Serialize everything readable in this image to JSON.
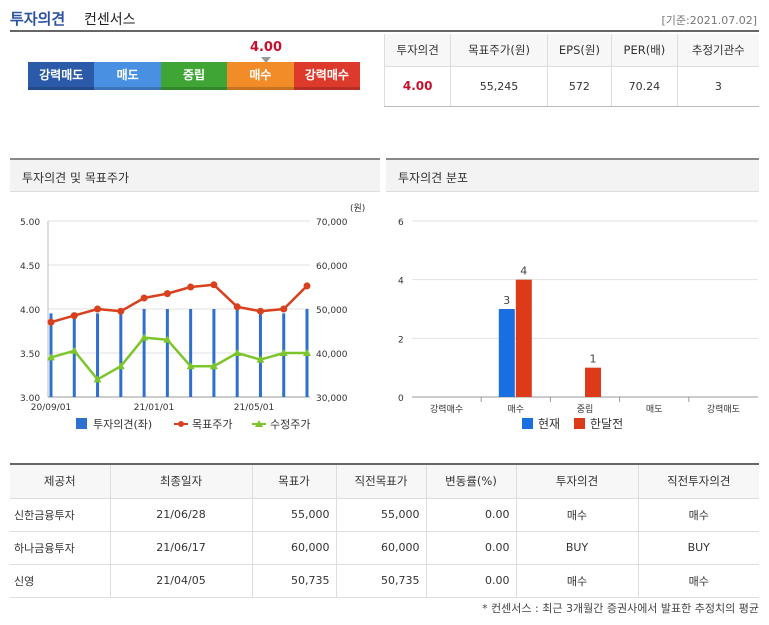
{
  "header": {
    "title": "투자의견",
    "subtitle": "컨센서스",
    "base_date": "[기준:2021.07.02]"
  },
  "opinion_bar": {
    "value": "4.00",
    "levels": [
      {
        "label": "강력매도",
        "color": "#2b5ba8"
      },
      {
        "label": "매도",
        "color": "#4a90e2"
      },
      {
        "label": "중립",
        "color": "#3fa535"
      },
      {
        "label": "매수",
        "color": "#f28c28"
      },
      {
        "label": "강력매수",
        "color": "#de3a2c"
      }
    ]
  },
  "summary": {
    "headers": [
      "투자의견",
      "목표주가(원)",
      "EPS(원)",
      "PER(배)",
      "추정기관수"
    ],
    "values": [
      "4.00",
      "55,245",
      "572",
      "70.24",
      "3"
    ]
  },
  "panels": {
    "left_title": "투자의견 및 목표주가",
    "right_title": "투자의견 분포"
  },
  "chart_data": [
    {
      "type": "line",
      "y_unit_label": "(원)",
      "x_tick_labels": [
        "20/09/01",
        "21/01/01",
        "21/05/01"
      ],
      "left_axis": {
        "ticks": [
          "5.00",
          "4.50",
          "4.00",
          "3.50",
          "3.00"
        ],
        "ylim": [
          3.0,
          5.0
        ]
      },
      "right_axis": {
        "ticks": [
          "70,000",
          "60,000",
          "50,000",
          "40,000",
          "30,000"
        ],
        "ylim": [
          30000,
          70000
        ]
      },
      "series": [
        {
          "name": "투자의견(좌)",
          "kind": "bar",
          "color": "#2f6fd0",
          "values": [
            3.95,
            3.95,
            3.95,
            3.95,
            4.0,
            4.0,
            4.0,
            4.0,
            4.0,
            3.95,
            3.95,
            4.0
          ]
        },
        {
          "name": "목표주가",
          "kind": "line",
          "color": "#d8401e",
          "values": [
            47000,
            48500,
            50000,
            49500,
            52500,
            53500,
            55000,
            55500,
            50500,
            49500,
            50000,
            55245
          ]
        },
        {
          "name": "수정주가",
          "kind": "line",
          "color": "#7cc52a",
          "values": [
            39000,
            40500,
            34000,
            37000,
            43500,
            43000,
            37000,
            37000,
            40000,
            38500,
            40000,
            40000
          ]
        }
      ]
    },
    {
      "type": "bar",
      "categories": [
        "강력매수",
        "매수",
        "중립",
        "매도",
        "강력매도"
      ],
      "ylim": [
        0,
        6
      ],
      "y_ticks": [
        "6",
        "4",
        "2",
        "0"
      ],
      "series": [
        {
          "name": "현재",
          "color": "#1a6fe0",
          "values": [
            0,
            3,
            0,
            0,
            0
          ]
        },
        {
          "name": "한달전",
          "color": "#dd3a1a",
          "values": [
            0,
            4,
            1,
            0,
            0
          ]
        }
      ],
      "data_labels": [
        "3",
        "4",
        "1"
      ]
    }
  ],
  "details": {
    "headers": [
      "제공처",
      "최종일자",
      "목표가",
      "직전목표가",
      "변동률(%)",
      "투자의견",
      "직전투자의견"
    ],
    "rows": [
      [
        "신한금융투자",
        "21/06/28",
        "55,000",
        "55,000",
        "0.00",
        "매수",
        "매수"
      ],
      [
        "하나금융투자",
        "21/06/17",
        "60,000",
        "60,000",
        "0.00",
        "BUY",
        "BUY"
      ],
      [
        "신영",
        "21/04/05",
        "50,735",
        "50,735",
        "0.00",
        "매수",
        "매수"
      ]
    ]
  },
  "footnote": "* 컨센서스 : 최근 3개월간 증권사에서 발표한 추정치의 평균"
}
